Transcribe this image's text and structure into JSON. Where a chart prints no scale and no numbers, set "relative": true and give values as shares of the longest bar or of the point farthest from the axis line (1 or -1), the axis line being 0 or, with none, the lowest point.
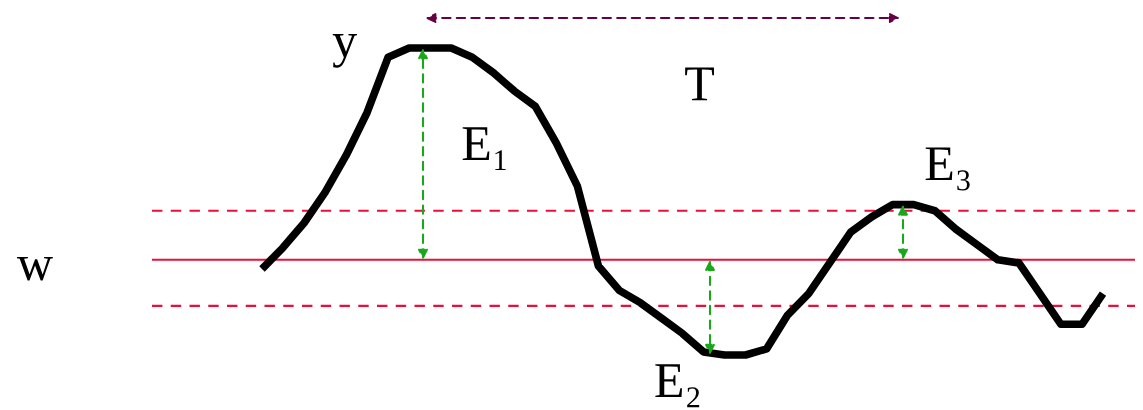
{
  "chart_data": {
    "type": "line",
    "relative": true,
    "categories": [
      null,
      null,
      null,
      null,
      null,
      null,
      null,
      null,
      null,
      null,
      null,
      null,
      null,
      null,
      null,
      null,
      null,
      null,
      null,
      null,
      null,
      null,
      null,
      null,
      null,
      null,
      null,
      null,
      null,
      null,
      null,
      null,
      null,
      null,
      null,
      null,
      null,
      null,
      null,
      null,
      null
    ],
    "series": [
      {
        "color": "#000000",
        "values": [
          0.28,
          0.35,
          0.43,
          0.53,
          0.65,
          0.79,
          0.97,
          1,
          1,
          1,
          0.97,
          0.92,
          0.86,
          0.81,
          0.69,
          0.55,
          0.29,
          0.21,
          0.17,
          0.12,
          0.07,
          0.01,
          0,
          0,
          0.02,
          0.13,
          0.2,
          0.3,
          0.4,
          0.45,
          0.49,
          0.49,
          0.47,
          0.41,
          0.36,
          0.31,
          0.3,
          0.2,
          0.1,
          0.1,
          0.2
        ]
      }
    ],
    "ref_lines": [
      {
        "axis": "y",
        "value": 0.47,
        "color": "#e8103a",
        "line_style": "dashed"
      },
      {
        "axis": "y",
        "value": 0.31,
        "color": "#e8103a",
        "line_style": "solid"
      },
      {
        "axis": "y",
        "value": 0.16,
        "color": "#e8103a",
        "line_style": "dashed"
      }
    ],
    "annotations": [
      "y",
      "w",
      "T",
      "E₁",
      "E₂",
      "E₃"
    ],
    "marker": "none",
    "line_style": "solid",
    "legend": false
  }
}
